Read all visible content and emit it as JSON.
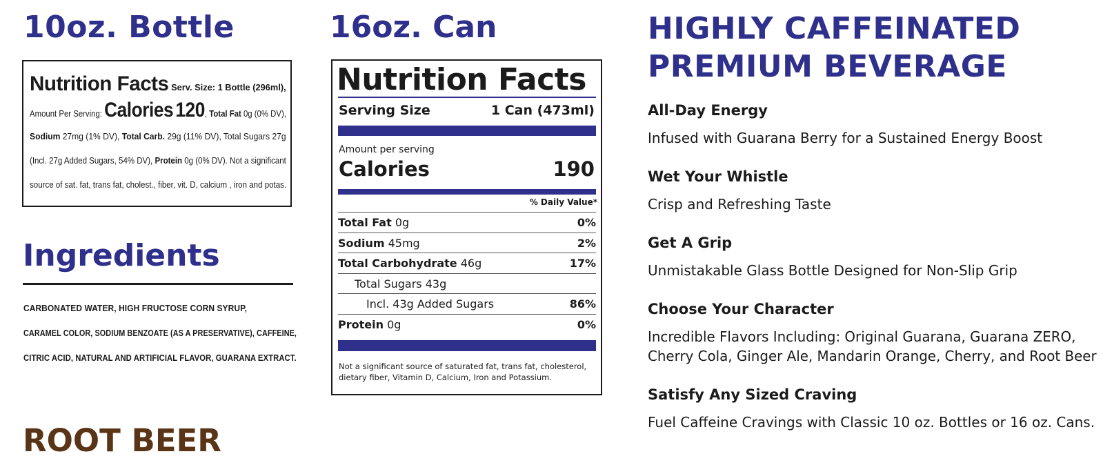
{
  "colors": {
    "accent_blue": "#2f2f8c",
    "root_beer_brown": "#5a3417",
    "text": "#1b1b1b"
  },
  "bottle": {
    "title": "10oz. Bottle",
    "label": {
      "heading": "Nutrition Facts",
      "serv_size": "Serv. Size: 1 Bottle (296ml),",
      "amount_per_serving": "Amount Per Serving:",
      "calories_word": "Calories",
      "calories_value": "120",
      "total_fat_label": "Total Fat",
      "total_fat_value": "0g (0% DV),",
      "sodium_label": "Sodium",
      "sodium_value": "27mg (1% DV),",
      "carb_label": "Total Carb.",
      "carb_value": "29g (11% DV), Total Sugars 27g",
      "added_sugars": "(Incl. 27g Added Sugars, 54% DV),",
      "protein_label": "Protein",
      "protein_value": "0g (0% DV). Not a significant",
      "footnote": "source of sat. fat, trans fat, cholest., fiber, vit. D, calcium , iron and potas."
    }
  },
  "ingredients": {
    "title": "Ingredients",
    "lines": [
      "CARBONATED WATER, HIGH FRUCTOSE CORN SYRUP,",
      "CARAMEL COLOR, SODIUM BENZOATE (AS A PRESERVATIVE), CAFFEINE,",
      "CITRIC ACID, NATURAL AND ARTIFICIAL FLAVOR, GUARANA EXTRACT."
    ]
  },
  "flavor": {
    "name": "ROOT BEER"
  },
  "can": {
    "title": "16oz. Can",
    "label": {
      "heading": "Nutrition Facts",
      "serving_size_label": "Serving Size",
      "serving_size_value": "1 Can (473ml)",
      "amount_per_serving": "Amount per serving",
      "calories_label": "Calories",
      "calories_value": "190",
      "daily_value_header": "% Daily Value*",
      "rows": [
        {
          "name": "Total Fat",
          "amount": "0g",
          "dv": "0%"
        },
        {
          "name": "Sodium",
          "amount": "45mg",
          "dv": "2%"
        },
        {
          "name": "Total Carbohydrate",
          "amount": "46g",
          "dv": "17%"
        },
        {
          "name": "",
          "amount": "Total Sugars 43g",
          "dv": ""
        },
        {
          "name": "",
          "amount": "Incl. 43g Added Sugars",
          "dv": "86%"
        },
        {
          "name": "Protein",
          "amount": "0g",
          "dv": "0%"
        }
      ],
      "footnote": "Not a significant source of saturated fat, trans fat, cholesterol, dietary fiber, Vitamin D, Calcium, Iron and Potassium."
    }
  },
  "features": {
    "heading_line1": "HIGHLY CAFFEINATED",
    "heading_line2": "PREMIUM BEVERAGE",
    "items": [
      {
        "title": "All-Day Energy",
        "desc_1": "Infused with Guarana Berry for a Sustained Energy Boost",
        "desc_2": ""
      },
      {
        "title": "Wet Your Whistle",
        "desc_1": "Crisp and Refreshing Taste",
        "desc_2": ""
      },
      {
        "title": "Get A Grip",
        "desc_1": "Unmistakable Glass Bottle Designed for Non-Slip Grip",
        "desc_2": ""
      },
      {
        "title": "Choose Your Character",
        "desc_1": "Incredible Flavors Including: Original Guarana, Guarana ZERO,",
        "desc_2": "Cherry Cola, Ginger Ale, Mandarin Orange, Cherry, and Root Beer"
      },
      {
        "title": "Satisfy Any Sized Craving",
        "desc_1": "Fuel Caffeine Cravings with Classic 10 oz. Bottles or 16 oz. Cans.",
        "desc_2": ""
      }
    ]
  }
}
